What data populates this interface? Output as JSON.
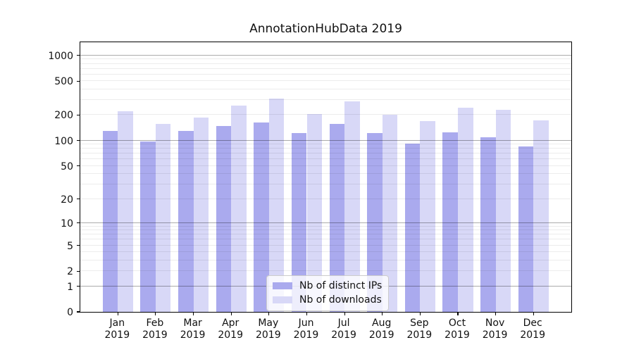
{
  "title": "AnnotationHubData 2019",
  "chart_data": {
    "type": "bar",
    "title": "AnnotationHubData 2019",
    "yscale": "log1p",
    "ylim": [
      0,
      1450
    ],
    "grid": true,
    "legend_position": "lower center",
    "year": "2019",
    "categories": [
      "Jan",
      "Feb",
      "Mar",
      "Apr",
      "May",
      "Jun",
      "Jul",
      "Aug",
      "Sep",
      "Oct",
      "Nov",
      "Dec"
    ],
    "y_ticks": [
      0,
      1,
      2,
      5,
      10,
      20,
      50,
      100,
      200,
      500,
      1000
    ],
    "series": [
      {
        "name": "Nb of distinct IPs",
        "color": "#aaaaee",
        "values": [
          131,
          97,
          131,
          150,
          162,
          122,
          158,
          122,
          92,
          124,
          109,
          85
        ]
      },
      {
        "name": "Nb of downloads",
        "color": "#d8d8f7",
        "values": [
          222,
          158,
          186,
          258,
          310,
          206,
          290,
          202,
          170,
          246,
          230,
          173
        ]
      }
    ]
  },
  "legend": {
    "entries": [
      "Nb of distinct IPs",
      "Nb of downloads"
    ]
  }
}
